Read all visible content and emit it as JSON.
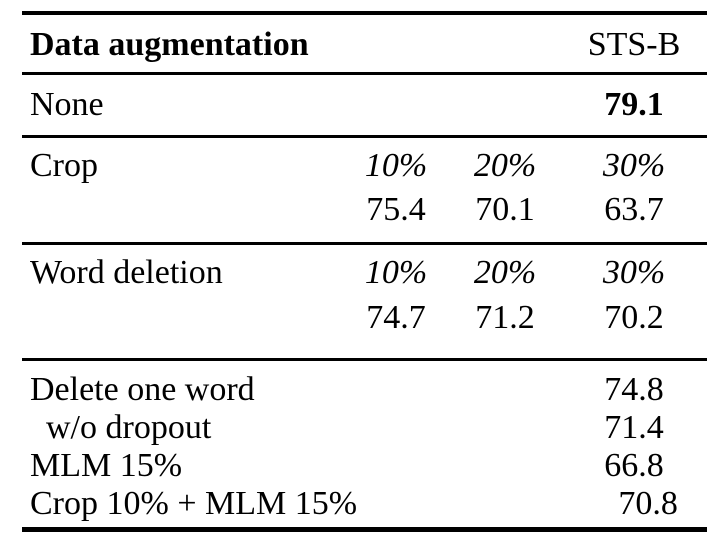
{
  "table": {
    "header": {
      "label": "Data augmentation",
      "metric": "STS-B"
    },
    "baseline": {
      "label": "None",
      "value": "79.1"
    },
    "crop": {
      "label": "Crop",
      "percents": [
        "10%",
        "20%",
        "30%"
      ],
      "values": [
        "75.4",
        "70.1",
        "63.7"
      ]
    },
    "word_deletion": {
      "label": "Word deletion",
      "percents": [
        "10%",
        "20%",
        "30%"
      ],
      "values": [
        "74.7",
        "71.2",
        "70.2"
      ]
    },
    "extra_rows": [
      {
        "label": "Delete one word",
        "value": "74.8"
      },
      {
        "label": "w/o dropout",
        "value": "71.4"
      },
      {
        "label": "MLM 15%",
        "value": "66.8"
      },
      {
        "label": "Crop 10% + MLM 15%",
        "value": "70.8"
      }
    ],
    "colors": {
      "text": "#000000",
      "background": "#ffffff",
      "rule": "#000000"
    }
  }
}
